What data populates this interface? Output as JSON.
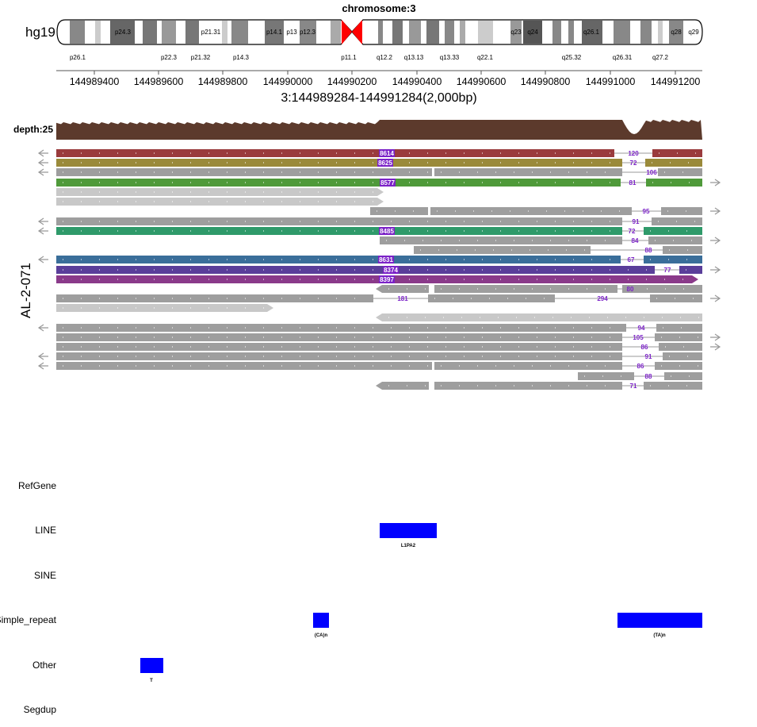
{
  "header": {
    "title": "chromosome:3",
    "genome": "hg19",
    "region": "3:144989284-144991284(2,000bp)",
    "sample": "AL-2-071",
    "depth_label": "depth:25"
  },
  "ideogram": {
    "bands_top": [
      "p24.3",
      "p21.31",
      "p14.1",
      "p13",
      "p12.3",
      "q23",
      "q24",
      "q26.1",
      "q28",
      "q29"
    ],
    "bands_bottom": [
      "p26.1",
      "p22.3",
      "p21.32",
      "p14.3",
      "p11.1",
      "q12.2",
      "q13.13",
      "q13.33",
      "q22.1",
      "q25.32",
      "q26.31",
      "q27.2"
    ],
    "centromere_color": "#ff0000"
  },
  "axis": {
    "ticks": [
      "144989400",
      "144989600",
      "144989800",
      "144990000",
      "144990200",
      "144990400",
      "144990600",
      "144990800",
      "144991000",
      "144991200"
    ]
  },
  "colors": {
    "depth": "#5c3a2c",
    "gray_read": "#9e9e9e",
    "light_read": "#c8c8c8",
    "read_num": "#7b22c7",
    "annot_block": "#0000ff"
  },
  "reads": {
    "long_labels": [
      "8614",
      "8625",
      "8577",
      "8485",
      "8631",
      "8374",
      "8397"
    ],
    "short_labels": [
      "120",
      "72",
      "106",
      "81",
      "95",
      "91",
      "72",
      "84",
      "88",
      "67",
      "77",
      "80",
      "181",
      "294",
      "94",
      "105",
      "86",
      "91",
      "86",
      "88",
      "71"
    ]
  },
  "annotation_tracks": {
    "names": [
      "RefGene",
      "LINE",
      "SINE",
      "Simple_repeat",
      "Other",
      "Segdup"
    ],
    "features": [
      "L1PA2",
      "(CA)n",
      "(TA)n",
      "T"
    ]
  }
}
